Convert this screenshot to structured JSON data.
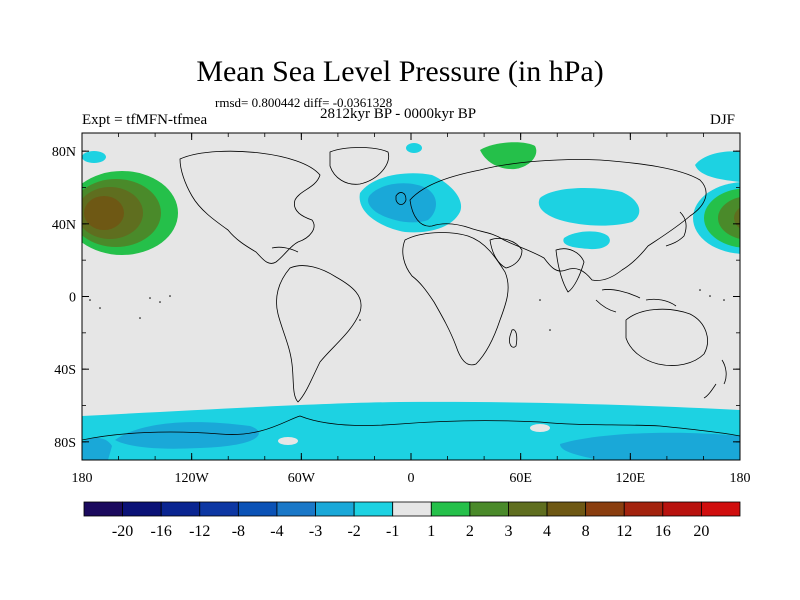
{
  "title": "Mean Sea Level Pressure (in hPa)",
  "stats": "rmsd= 0.800442 diff= -0.0361328",
  "experiment": "Expt = tfMFN-tfmea",
  "period": "2812kyr BP - 0000kyr BP",
  "season": "DJF",
  "lat_labels": [
    "80N",
    "40N",
    "0",
    "40S",
    "80S"
  ],
  "lon_labels": [
    "180",
    "120W",
    "60W",
    "0",
    "60E",
    "120E",
    "180"
  ],
  "colorbar": {
    "labels": [
      "-20",
      "-16",
      "-12",
      "-8",
      "-4",
      "-3",
      "-2",
      "-1",
      "1",
      "2",
      "3",
      "4",
      "8",
      "12",
      "16",
      "20"
    ],
    "colors": [
      "#1b0a5e",
      "#0b1277",
      "#0a2591",
      "#0d37a3",
      "#0b52b6",
      "#1a78c8",
      "#1aa8d8",
      "#1dd2e2",
      "#e6e6e6",
      "#25c04a",
      "#4a8a2a",
      "#5f6e1f",
      "#6e5814",
      "#8a3e0f",
      "#a3230e",
      "#b8120e",
      "#d00e0e"
    ]
  },
  "colors": {
    "neutral": "#e6e6e6"
  }
}
